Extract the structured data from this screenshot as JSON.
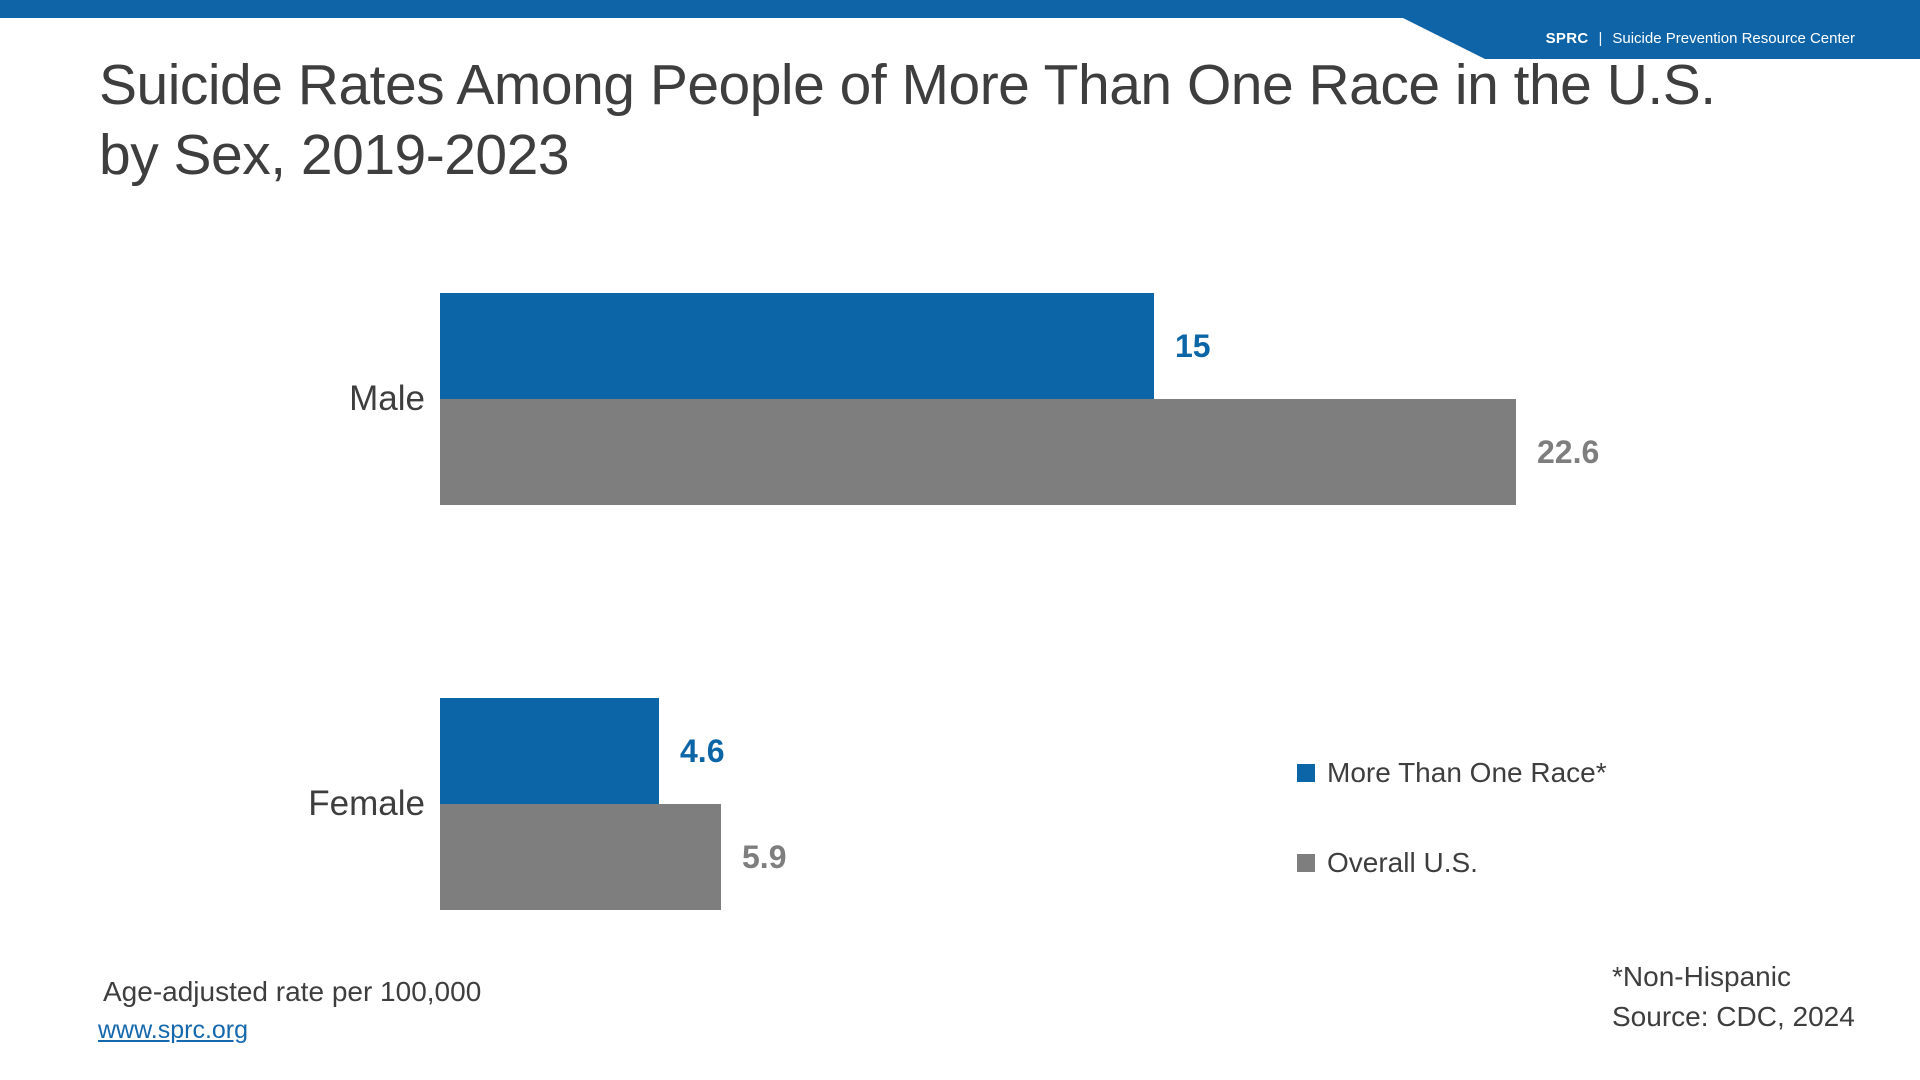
{
  "header": {
    "brand_abbrev": "SPRC",
    "separator": "|",
    "brand_name": "Suicide Prevention Resource Center"
  },
  "title": {
    "line1": "Suicide Rates Among People of More Than One Race in the U.S.",
    "line2": "by Sex, 2019-2023"
  },
  "chart_data": {
    "type": "bar",
    "orientation": "horizontal",
    "title": "Suicide Rates Among People of More Than One Race in the U.S. by Sex, 2019-2023",
    "categories": [
      "Male",
      "Female"
    ],
    "series": [
      {
        "name": "More Than One Race*",
        "color": "#0B65A6",
        "values": [
          15,
          4.6
        ],
        "labels": [
          "15",
          "4.6"
        ]
      },
      {
        "name": "Overall U.S.",
        "color": "#7E7E7E",
        "values": [
          22.6,
          5.9
        ],
        "labels": [
          "22.6",
          "5.9"
        ]
      }
    ],
    "xlim": [
      0,
      22.6
    ],
    "grid": false,
    "axes_visible": false,
    "legend_position": "right-center",
    "value_note": "Age-adjusted rate per 100,000"
  },
  "footnotes": {
    "rate_note": "Age-adjusted rate per 100,000",
    "link": "www.sprc.org",
    "asterisk_note": "*Non-Hispanic",
    "source": "Source: CDC, 2024"
  },
  "colors": {
    "brand_blue": "#0E64A7",
    "bar_blue": "#0B65A6",
    "bar_gray": "#7E7E7E",
    "text_dark": "#3E3E3E",
    "link_blue": "#1568AD"
  }
}
